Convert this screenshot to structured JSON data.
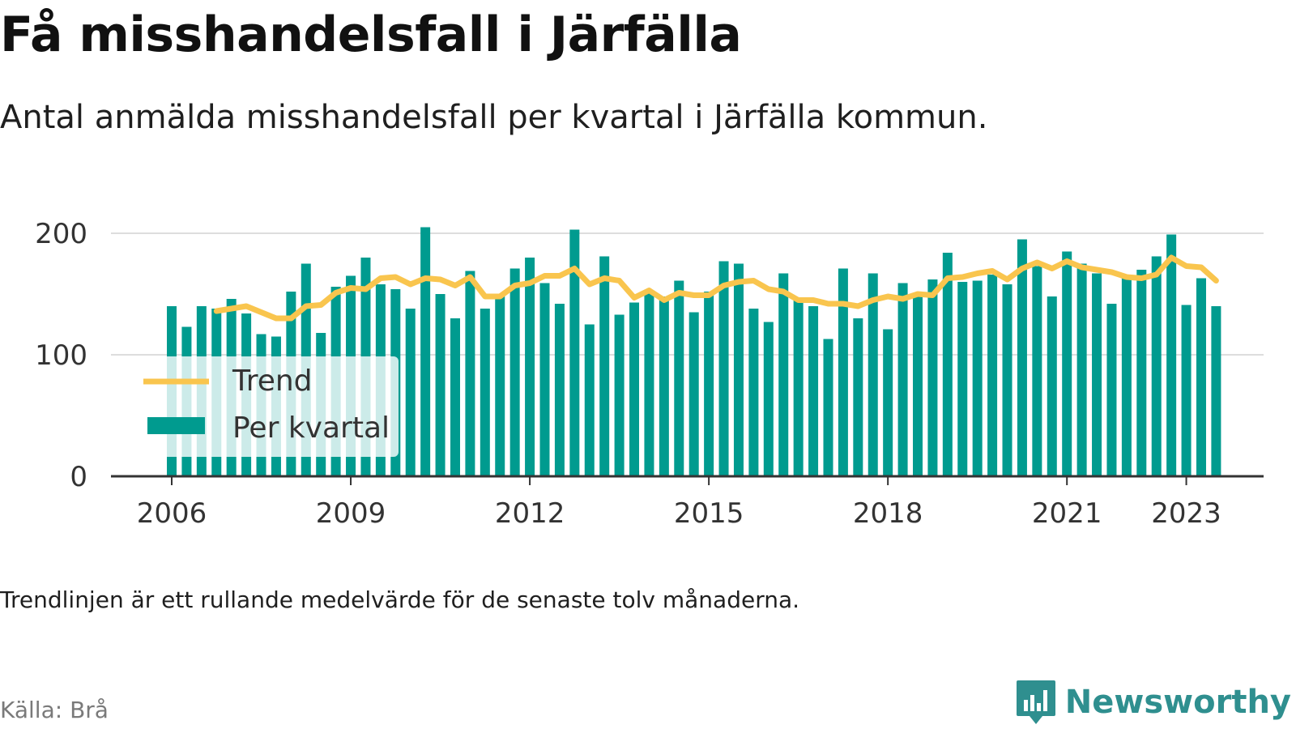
{
  "title": "Få misshandelsfall i Järfälla",
  "subtitle": "Antal anmälda misshandelsfall per kvartal i Järfälla kommun.",
  "note": "Trendlinjen är ett rullande medelvärde för de senaste tolv månaderna.",
  "source": "Källa: Brå",
  "brand": {
    "name": "Newsworthy",
    "icon": "newsworthy-logo-icon"
  },
  "colors": {
    "bars": "#009b8f",
    "trend": "#f9c54e",
    "grid": "#dddddd",
    "axis": "#333333"
  },
  "chart_data": {
    "type": "bar",
    "x_ticks": [
      "2006",
      "2009",
      "2012",
      "2015",
      "2018",
      "2021",
      "2023"
    ],
    "y_ticks": [
      "0",
      "100",
      "200"
    ],
    "ylim": [
      0,
      200
    ],
    "grid": true,
    "legend": {
      "placement": "bottom-left",
      "items": [
        "Trend",
        "Per kvartal"
      ]
    },
    "x_start": "2006 Q1",
    "series": [
      {
        "name": "Per kvartal",
        "values": [
          140,
          123,
          140,
          138,
          146,
          134,
          117,
          115,
          152,
          175,
          118,
          156,
          165,
          180,
          158,
          154,
          138,
          205,
          150,
          130,
          169,
          138,
          150,
          171,
          180,
          159,
          142,
          203,
          125,
          181,
          133,
          143,
          152,
          148,
          161,
          135,
          152,
          177,
          175,
          138,
          127,
          167,
          145,
          140,
          113,
          171,
          130,
          167,
          121,
          159,
          150,
          162,
          184,
          160,
          161,
          166,
          158,
          195,
          173,
          148,
          185,
          175,
          167,
          142,
          164,
          170,
          181,
          199,
          141,
          163,
          140
        ],
        "color": "#009b8f"
      },
      {
        "name": "Trend",
        "start_index": 3,
        "values": [
          136,
          138,
          140,
          135,
          130,
          130,
          140,
          141,
          151,
          155,
          154,
          163,
          164,
          158,
          163,
          162,
          157,
          164,
          148,
          148,
          157,
          159,
          165,
          165,
          171,
          158,
          163,
          161,
          147,
          153,
          145,
          151,
          149,
          149,
          157,
          160,
          161,
          154,
          152,
          145,
          145,
          142,
          142,
          140,
          145,
          148,
          146,
          150,
          149,
          163,
          164,
          167,
          169,
          162,
          171,
          176,
          171,
          177,
          172,
          170,
          168,
          164,
          163,
          166,
          180,
          173,
          172,
          161
        ],
        "color": "#f9c54e"
      }
    ]
  }
}
